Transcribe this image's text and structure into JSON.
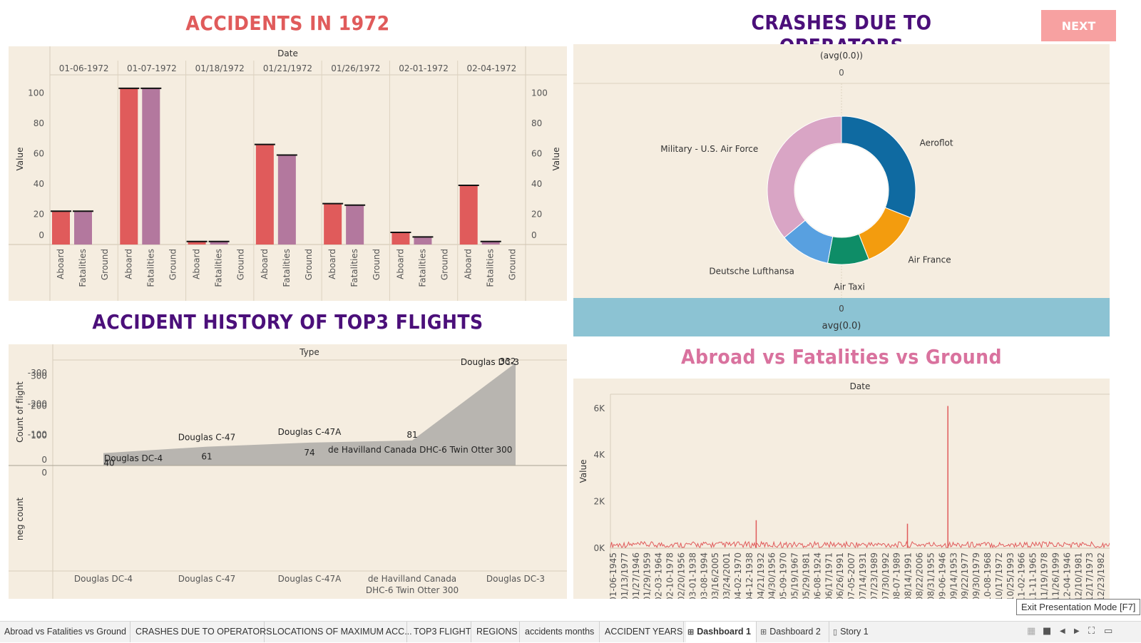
{
  "titles": {
    "accidents1972": "ACCIDENTS IN 1972",
    "crashes": "CRASHES DUE TO OPERATORS",
    "history": "ACCIDENT HISTORY OF TOP3 FLIGHTS",
    "abroad": "Abroad vs Fatalities vs Ground"
  },
  "colors": {
    "red_title": "#e05b5b",
    "purple_title": "#4b0f7a",
    "pink_title": "#d9729e",
    "aboard_bar": "#e05b5b",
    "fatalities_bar": "#b3789e",
    "panel_bg": "#f5ede0",
    "donut_aeroflot": "#0f6aa1",
    "donut_airfrance": "#f39c0e",
    "donut_airtaxi": "#0e8d67",
    "donut_lufthansa": "#58a0e0",
    "donut_military": "#d9a5c5",
    "avg_band": "#8cc3d3",
    "area_top": "#8aa3c3",
    "area_bottom": "#b8b5b0",
    "spike_line": "#e05b5b"
  },
  "next_button": {
    "label": "NEXT"
  },
  "chart1": {
    "type": "bar",
    "header": "Date",
    "ylabel": "Value",
    "ylim": [
      0,
      110
    ],
    "yticks": [
      0,
      20,
      40,
      60,
      80,
      100
    ],
    "dates": [
      "01-06-1972",
      "01-07-1972",
      "01/18/1972",
      "01/21/1972",
      "01/26/1972",
      "02-01-1972",
      "02-04-1972"
    ],
    "subcategories": [
      "Aboard",
      "Fatalities",
      "Ground"
    ],
    "values": [
      [
        22,
        22,
        0
      ],
      [
        103,
        103,
        0
      ],
      [
        2,
        2,
        0
      ],
      [
        66,
        59,
        0
      ],
      [
        27,
        26,
        0
      ],
      [
        8,
        5,
        0
      ],
      [
        39,
        2,
        0
      ]
    ]
  },
  "chart2": {
    "type": "pie",
    "top_header": "(avg(0.0))",
    "top_zero": "0",
    "bottom_zero": "0",
    "bottom_label": "avg(0.0)",
    "slices": [
      {
        "name": "Aeroflot",
        "value": 31
      },
      {
        "name": "Air France",
        "value": 13
      },
      {
        "name": "Air Taxi",
        "value": 9
      },
      {
        "name": "Deutsche Lufthansa",
        "value": 11
      },
      {
        "name": "Military - U.S. Air Force",
        "value": 36
      }
    ]
  },
  "chart3": {
    "type": "area",
    "header": "Type",
    "ylabel_top": "Count of flight",
    "ylabel_bottom": "neg count",
    "yticks_top": [
      0,
      100,
      200,
      300
    ],
    "yticks_bottom": [
      0,
      -100,
      -200,
      -300
    ],
    "ylim_top": [
      0,
      330
    ],
    "ylim_bottom": [
      -330,
      0
    ],
    "categories": [
      "Douglas DC-4",
      "Douglas C-47",
      "Douglas C-47A",
      "de Havilland Canada DHC-6 Twin Otter 300",
      "Douglas DC-3"
    ],
    "cat_label_lines": [
      [
        "Douglas DC-4"
      ],
      [
        "Douglas C-47"
      ],
      [
        "Douglas C-47A"
      ],
      [
        "de Havilland Canada",
        "DHC-6 Twin Otter 300"
      ],
      [
        "Douglas DC-3"
      ]
    ],
    "values": [
      40,
      61,
      74,
      81,
      332
    ],
    "value_labels": [
      "40",
      "61",
      "74",
      "81",
      "332"
    ]
  },
  "chart4": {
    "type": "line",
    "header": "Date",
    "ylabel": "Value",
    "yticks": [
      "0K",
      "2K",
      "4K",
      "6K"
    ],
    "ylim": [
      0,
      6300
    ],
    "spikes": [
      {
        "position": 0.292,
        "value": 1200
      },
      {
        "position": 0.595,
        "value": 1050
      },
      {
        "position": 0.676,
        "value": 6100
      }
    ],
    "xtick_labels": [
      "01-06-1945",
      "01/13/1977",
      "01/27/1946",
      "01/29/1959",
      "02-03-1964",
      "02-10-1978",
      "02/20/1956",
      "03-01-1938",
      "03-08-1994",
      "03/16/2005",
      "03/24/2001",
      "04-02-1970",
      "04-12-1938",
      "04/21/1932",
      "04/30/1956",
      "05-09-1970",
      "05/19/1967",
      "05/29/1981",
      "06-08-1924",
      "06/17/1971",
      "06/26/1991",
      "07-05-2007",
      "07/14/1931",
      "07/23/1989",
      "07/30/1992",
      "08-07-1989",
      "08/14/1991",
      "08/22/2006",
      "08/31/1955",
      "09-06-1946",
      "09/14/1953",
      "09/22/1977",
      "09/30/1979",
      "10-08-1968",
      "10/17/1972",
      "10/25/1993",
      "11-02-1966",
      "11-11-1965",
      "11/19/1978",
      "11/26/1999",
      "12-04-1946",
      "12/10/1981",
      "12/17/1973",
      "12/23/1982"
    ]
  },
  "tabs": [
    {
      "label": "Abroad vs Fatalities vs Ground"
    },
    {
      "label": "CRASHES DUE TO OPERATORS"
    },
    {
      "label": "LOCATIONS OF MAXIMUM ACC..."
    },
    {
      "label": "TOP3 FLIGHT"
    },
    {
      "label": "REGIONS"
    },
    {
      "label": "accidents months"
    },
    {
      "label": "ACCIDENT YEARS"
    },
    {
      "label": "Dashboard 1"
    },
    {
      "label": "Dashboard 2"
    },
    {
      "label": "Story 1"
    }
  ],
  "tooltip": "Exit Presentation Mode [F7]"
}
